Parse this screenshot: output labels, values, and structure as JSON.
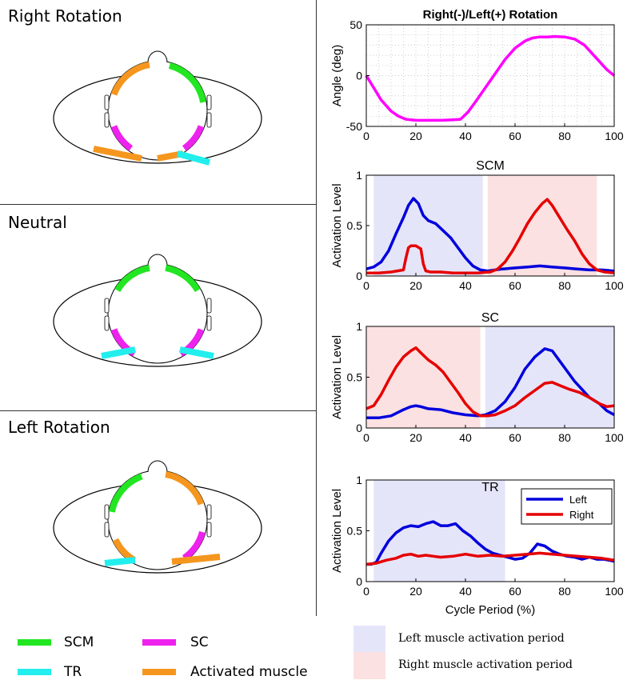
{
  "panels": [
    {
      "title": "Right Rotation"
    },
    {
      "title": "Neutral"
    },
    {
      "title": "Left Rotation"
    }
  ],
  "colors": {
    "scm": "#22e622",
    "sc": "#ee22ee",
    "tr": "#22eeee",
    "activated": "#f5961e",
    "left": "#0000dd",
    "right": "#e60000",
    "left_period": "#e5e5fa",
    "right_period": "#fbe1e1"
  },
  "legend": {
    "scm": "SCM",
    "sc": "SC",
    "tr": "TR",
    "activated": "Activated muscle",
    "left_period": "Left muscle activation period",
    "right_period": "Right muscle activation period"
  },
  "chart_data": [
    {
      "type": "line",
      "title": "Right(-)/Left(+) Rotation",
      "ylabel": "Angle (deg)",
      "xlabel": "",
      "xlim": [
        0,
        100
      ],
      "ylim": [
        -50,
        50
      ],
      "xticks": [
        "0",
        "20",
        "40",
        "60",
        "80",
        "100"
      ],
      "yticks": [
        "-50",
        "0",
        "50"
      ],
      "grid": "dotted",
      "series": [
        {
          "color": "#ff00ff",
          "x": [
            0,
            3,
            6,
            10,
            13,
            16,
            18,
            20,
            25,
            30,
            35,
            38,
            41,
            44,
            48,
            52,
            56,
            60,
            64,
            67,
            70,
            73,
            76,
            80,
            84,
            88,
            91,
            94,
            97,
            100
          ],
          "y": [
            0,
            -12,
            -24,
            -35,
            -40,
            -43,
            -43.5,
            -44,
            -44,
            -44,
            -43.5,
            -43,
            -36,
            -26,
            -12,
            2,
            16,
            27,
            34,
            37,
            38,
            38,
            38.5,
            38,
            36,
            30,
            22,
            14,
            6,
            0
          ]
        }
      ]
    },
    {
      "type": "line",
      "title": "SCM",
      "ylabel": "Activation Level",
      "xlabel": "",
      "xlim": [
        0,
        100
      ],
      "ylim": [
        0,
        1
      ],
      "xticks": [
        "0",
        "20",
        "40",
        "60",
        "80",
        "100"
      ],
      "yticks": [
        "0",
        "0.5",
        "1"
      ],
      "shading": [
        {
          "from": 3,
          "to": 47,
          "side": "left"
        },
        {
          "from": 49,
          "to": 93,
          "side": "right"
        }
      ],
      "series": [
        {
          "name": "Left",
          "x": [
            0,
            3,
            6,
            9,
            12,
            15,
            17,
            19,
            21,
            23,
            25,
            28,
            31,
            34,
            37,
            40,
            43,
            46,
            49,
            52,
            55,
            60,
            65,
            70,
            75,
            80,
            85,
            90,
            95,
            100
          ],
          "y": [
            0.07,
            0.09,
            0.14,
            0.25,
            0.42,
            0.58,
            0.7,
            0.77,
            0.72,
            0.6,
            0.55,
            0.52,
            0.45,
            0.38,
            0.28,
            0.18,
            0.1,
            0.06,
            0.05,
            0.06,
            0.07,
            0.08,
            0.09,
            0.1,
            0.09,
            0.08,
            0.07,
            0.06,
            0.06,
            0.05
          ]
        },
        {
          "name": "Right",
          "x": [
            0,
            5,
            10,
            15,
            16,
            17,
            18,
            20,
            22,
            23,
            24,
            26,
            30,
            35,
            40,
            45,
            50,
            53,
            56,
            59,
            62,
            65,
            68,
            71,
            73,
            75,
            78,
            81,
            84,
            87,
            90,
            93,
            96,
            100
          ],
          "y": [
            0.03,
            0.03,
            0.04,
            0.06,
            0.18,
            0.28,
            0.3,
            0.3,
            0.27,
            0.12,
            0.05,
            0.04,
            0.04,
            0.03,
            0.03,
            0.03,
            0.04,
            0.07,
            0.14,
            0.25,
            0.38,
            0.52,
            0.63,
            0.72,
            0.76,
            0.7,
            0.58,
            0.46,
            0.35,
            0.22,
            0.12,
            0.06,
            0.04,
            0.03
          ]
        }
      ]
    },
    {
      "type": "line",
      "title": "SC",
      "ylabel": "Activation Level",
      "xlabel": "",
      "xlim": [
        0,
        100
      ],
      "ylim": [
        0,
        1
      ],
      "xticks": [
        "0",
        "20",
        "40",
        "60",
        "80",
        "100"
      ],
      "yticks": [
        "0",
        "0.5",
        "1"
      ],
      "shading": [
        {
          "from": 0,
          "to": 46,
          "side": "right"
        },
        {
          "from": 48,
          "to": 100,
          "side": "left"
        }
      ],
      "series": [
        {
          "name": "Left",
          "x": [
            0,
            5,
            10,
            15,
            18,
            20,
            22,
            25,
            30,
            35,
            40,
            45,
            48,
            52,
            56,
            60,
            64,
            68,
            72,
            75,
            78,
            81,
            84,
            87,
            90,
            94,
            97,
            100
          ],
          "y": [
            0.1,
            0.1,
            0.12,
            0.18,
            0.21,
            0.22,
            0.21,
            0.19,
            0.18,
            0.15,
            0.13,
            0.12,
            0.13,
            0.17,
            0.26,
            0.4,
            0.58,
            0.7,
            0.78,
            0.76,
            0.66,
            0.56,
            0.46,
            0.38,
            0.3,
            0.24,
            0.17,
            0.13
          ]
        },
        {
          "name": "Right",
          "x": [
            0,
            3,
            6,
            9,
            12,
            15,
            18,
            20,
            22,
            25,
            28,
            31,
            34,
            37,
            40,
            43,
            46,
            49,
            52,
            56,
            60,
            64,
            68,
            72,
            75,
            78,
            82,
            86,
            90,
            94,
            97,
            100
          ],
          "y": [
            0.19,
            0.22,
            0.33,
            0.47,
            0.6,
            0.7,
            0.76,
            0.79,
            0.74,
            0.67,
            0.62,
            0.55,
            0.45,
            0.35,
            0.24,
            0.16,
            0.12,
            0.12,
            0.13,
            0.17,
            0.22,
            0.3,
            0.37,
            0.44,
            0.45,
            0.42,
            0.38,
            0.35,
            0.3,
            0.24,
            0.21,
            0.22
          ]
        }
      ]
    },
    {
      "type": "line",
      "title": "TR",
      "ylabel": "Activation Level",
      "xlabel": "Cycle Period (%)",
      "xlim": [
        0,
        100
      ],
      "ylim": [
        0,
        1
      ],
      "xticks": [
        "0",
        "20",
        "40",
        "60",
        "80",
        "100"
      ],
      "yticks": [
        "0",
        "0.5",
        "1"
      ],
      "legend_position": "top-right",
      "shading": [
        {
          "from": 3,
          "to": 56,
          "side": "left"
        }
      ],
      "series": [
        {
          "name": "Left",
          "x": [
            0,
            2,
            4,
            6,
            9,
            12,
            15,
            18,
            21,
            24,
            27,
            30,
            33,
            36,
            39,
            42,
            45,
            48,
            51,
            54,
            57,
            60,
            63,
            66,
            69,
            72,
            75,
            78,
            81,
            84,
            87,
            90,
            93,
            96,
            100
          ],
          "y": [
            0.17,
            0.17,
            0.19,
            0.28,
            0.4,
            0.48,
            0.53,
            0.55,
            0.54,
            0.57,
            0.59,
            0.55,
            0.55,
            0.57,
            0.5,
            0.45,
            0.38,
            0.32,
            0.28,
            0.26,
            0.24,
            0.22,
            0.23,
            0.28,
            0.37,
            0.35,
            0.3,
            0.27,
            0.25,
            0.24,
            0.22,
            0.24,
            0.22,
            0.22,
            0.2
          ]
        },
        {
          "name": "Right",
          "x": [
            0,
            4,
            8,
            12,
            15,
            18,
            21,
            24,
            27,
            30,
            35,
            40,
            45,
            50,
            55,
            60,
            65,
            70,
            75,
            80,
            85,
            90,
            95,
            100
          ],
          "y": [
            0.17,
            0.18,
            0.21,
            0.23,
            0.26,
            0.27,
            0.25,
            0.26,
            0.25,
            0.24,
            0.25,
            0.27,
            0.25,
            0.26,
            0.25,
            0.26,
            0.27,
            0.28,
            0.27,
            0.26,
            0.25,
            0.24,
            0.23,
            0.21
          ]
        }
      ]
    }
  ]
}
